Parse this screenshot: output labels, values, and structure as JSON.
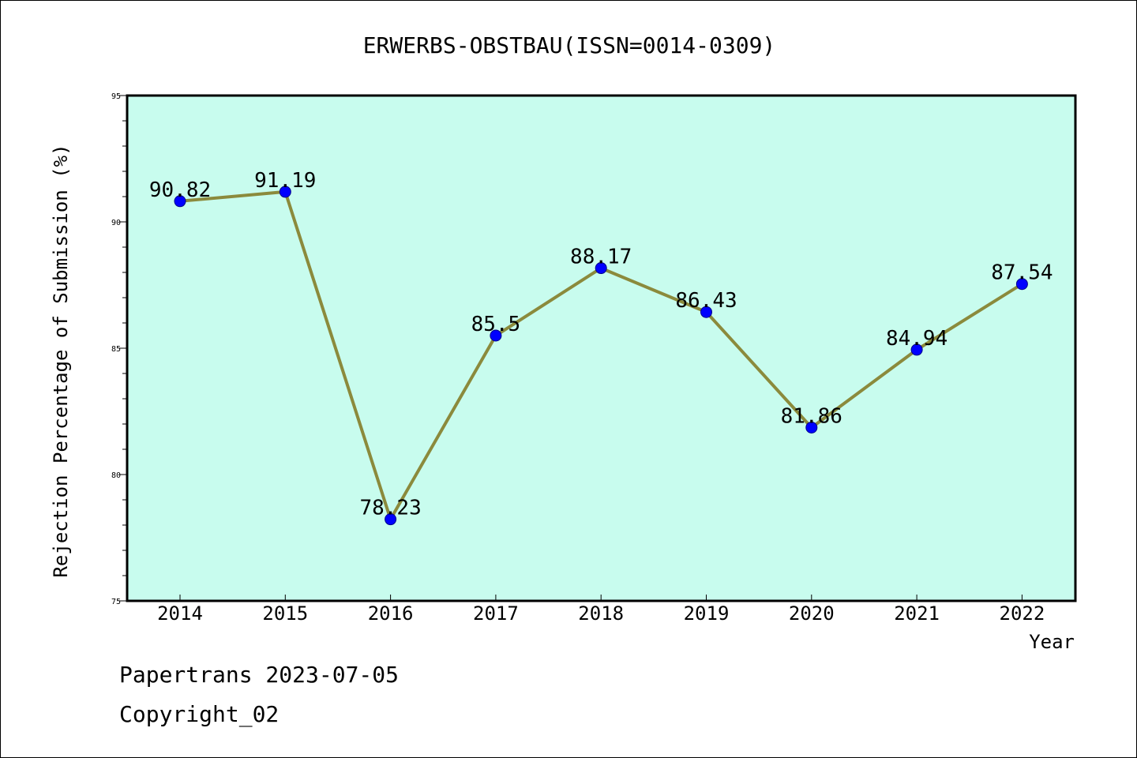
{
  "chart_data": {
    "type": "line",
    "title": "ERWERBS-OBSTBAU(ISSN=0014-0309)",
    "xlabel": "Year",
    "ylabel": "Rejection Percentage of Submission (%)",
    "categories": [
      "2014",
      "2015",
      "2016",
      "2017",
      "2018",
      "2019",
      "2020",
      "2021",
      "2022"
    ],
    "values": [
      90.82,
      91.19,
      78.23,
      85.5,
      88.17,
      86.43,
      81.86,
      84.94,
      87.54
    ],
    "data_labels": [
      "90.82",
      "91.19",
      "78.23",
      "85.5",
      "88.17",
      "86.43",
      "81.86",
      "84.94",
      "87.54"
    ],
    "ylim": [
      75,
      95
    ],
    "yticks": [
      75,
      80,
      85,
      90,
      95
    ],
    "grid": false,
    "legend": "none",
    "colors": {
      "plot_background": "#c8fcee",
      "line": "#8b8a3c",
      "marker": "#0000ff",
      "marker_edge": "#00008b",
      "axes": "#000000"
    }
  },
  "footer": {
    "line1": "Papertrans 2023-07-05",
    "line2": "Copyright_02"
  }
}
